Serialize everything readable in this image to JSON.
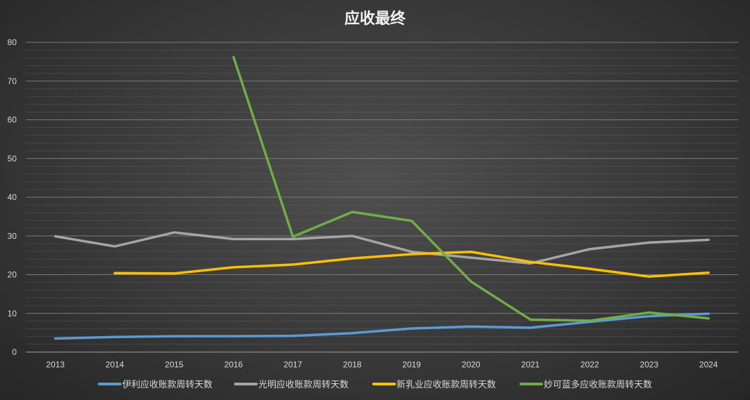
{
  "chart_data": {
    "type": "line",
    "title": "应收最终",
    "xlabel": "",
    "ylabel": "",
    "categories": [
      "2013",
      "2014",
      "2015",
      "2016",
      "2017",
      "2018",
      "2019",
      "2020",
      "2021",
      "2022",
      "2023",
      "2024"
    ],
    "ylim": [
      0,
      80
    ],
    "y_ticks": [
      0,
      10,
      20,
      30,
      40,
      50,
      60,
      70,
      80
    ],
    "grid": true,
    "legend_position": "bottom",
    "series": [
      {
        "name": "伊利应收账款周转天数",
        "color": "#5b9bd5",
        "values": [
          3.5,
          3.9,
          4.1,
          4.1,
          4.2,
          4.9,
          6.1,
          6.6,
          6.3,
          7.8,
          9.3,
          9.9
        ]
      },
      {
        "name": "光明应收账款周转天数",
        "color": "#a5a5a5",
        "values": [
          29.9,
          27.3,
          30.9,
          29.2,
          29.2,
          30.0,
          25.9,
          24.4,
          22.9,
          26.6,
          28.3,
          29.0
        ]
      },
      {
        "name": "新乳业应收账款周转天数",
        "color": "#ffc000",
        "values": [
          null,
          20.4,
          20.3,
          21.9,
          22.6,
          24.2,
          25.3,
          25.9,
          23.3,
          21.5,
          19.5,
          20.5
        ]
      },
      {
        "name": "妙可蓝多应收账款周转天数",
        "color": "#70ad47",
        "values": [
          null,
          null,
          null,
          76.2,
          29.8,
          36.2,
          33.9,
          18.2,
          8.4,
          8.1,
          10.2,
          8.7
        ]
      }
    ]
  }
}
